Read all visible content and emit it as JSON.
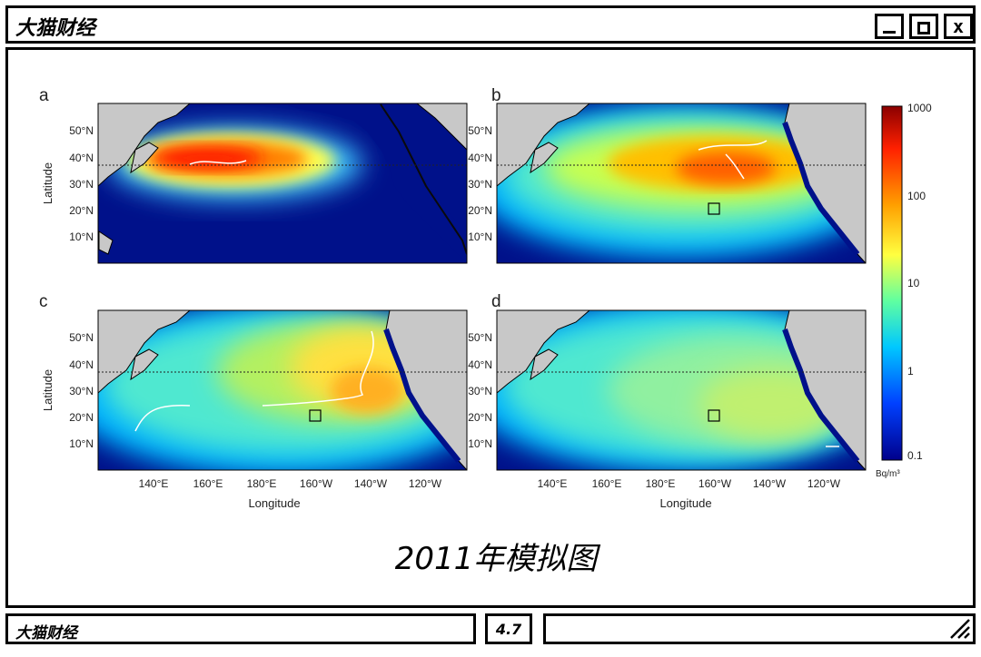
{
  "window": {
    "title": "大猫财经",
    "controls": [
      "minimize",
      "maximize",
      "close"
    ],
    "close_glyph": "x"
  },
  "figure": {
    "panels": [
      {
        "label": "a"
      },
      {
        "label": "b"
      },
      {
        "label": "c"
      },
      {
        "label": "d"
      }
    ],
    "latitude_label": "Latitude",
    "longitude_label": "Longitude",
    "lat_ticks": [
      "50°N",
      "40°N",
      "30°N",
      "20°N",
      "10°N"
    ],
    "lon_ticks": [
      "140°E",
      "160°E",
      "180°E",
      "160°W",
      "140°W",
      "120°W"
    ],
    "colorbar": {
      "ticks": [
        "1000",
        "100",
        "10",
        "1",
        "0.1"
      ],
      "unit": "Bq/m³",
      "scale": "log",
      "colors": [
        "#8b0000",
        "#ff2000",
        "#ffa000",
        "#ffff40",
        "#60ffa0",
        "#00c8ff",
        "#0040ff",
        "#00008b"
      ]
    },
    "colors": {
      "ocean": "#00118a",
      "land": "#c8c8c8"
    }
  },
  "caption": "2011年模拟图",
  "statusbar": {
    "left_text": "大猫财经",
    "middle_text": "4.7",
    "right_text": ""
  }
}
